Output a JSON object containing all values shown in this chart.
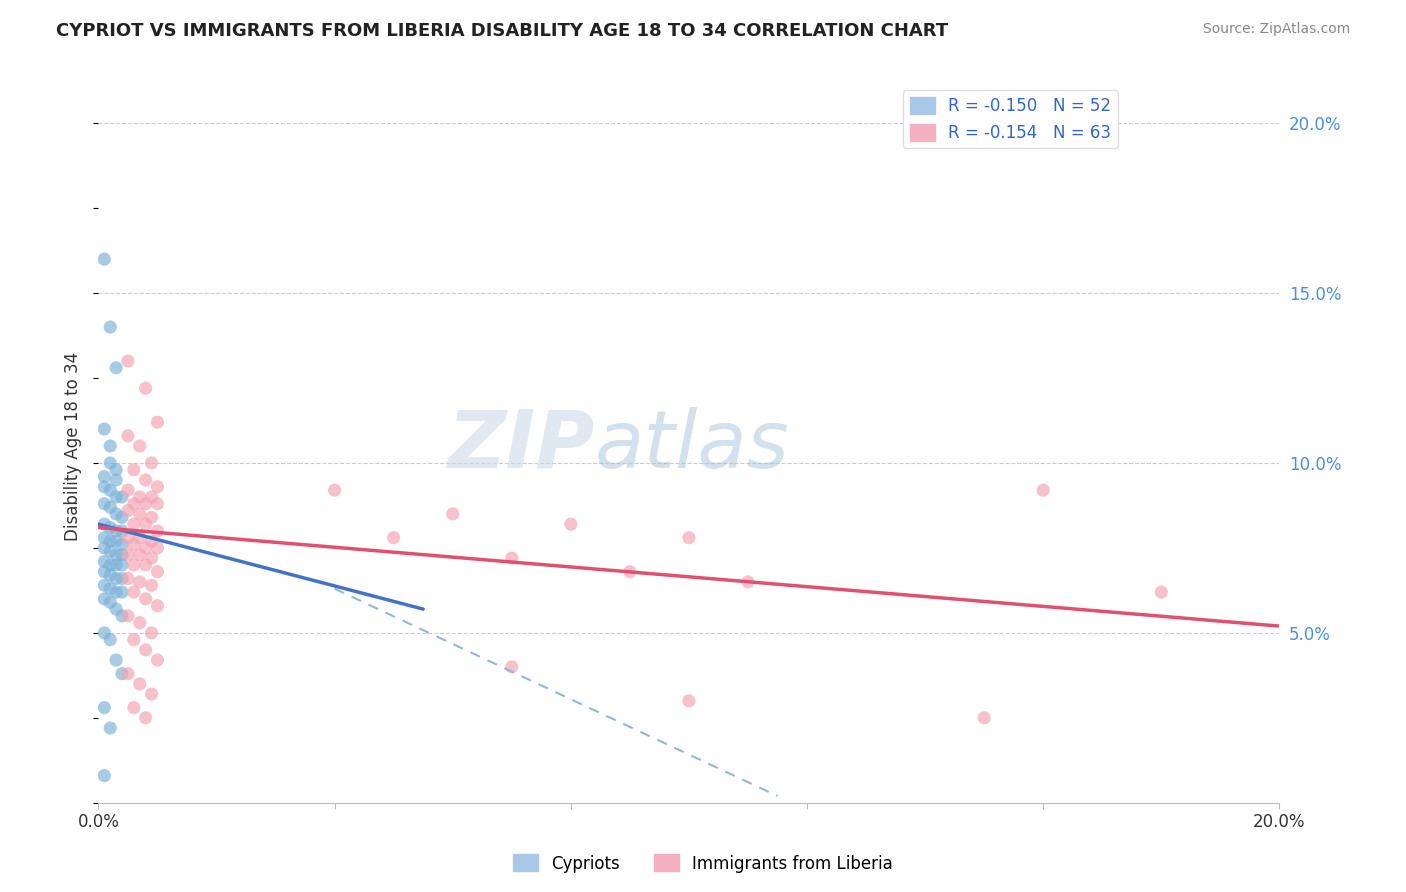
{
  "title": "CYPRIOT VS IMMIGRANTS FROM LIBERIA DISABILITY AGE 18 TO 34 CORRELATION CHART",
  "source_text": "Source: ZipAtlas.com",
  "ylabel": "Disability Age 18 to 34",
  "xlim": [
    0.0,
    0.2
  ],
  "ylim": [
    0.0,
    0.21
  ],
  "x_ticks": [
    0.0,
    0.04,
    0.08,
    0.12,
    0.16,
    0.2
  ],
  "x_tick_labels": [
    "0.0%",
    "",
    "",
    "",
    "",
    "20.0%"
  ],
  "y_ticks_right": [
    0.05,
    0.1,
    0.15,
    0.2
  ],
  "y_tick_labels_right": [
    "5.0%",
    "10.0%",
    "15.0%",
    "20.0%"
  ],
  "cypriot_color": "#7ab0d8",
  "liberia_color": "#f4a0b0",
  "cypriot_dots": [
    [
      0.001,
      0.16
    ],
    [
      0.002,
      0.14
    ],
    [
      0.003,
      0.128
    ],
    [
      0.001,
      0.11
    ],
    [
      0.002,
      0.105
    ],
    [
      0.002,
      0.1
    ],
    [
      0.003,
      0.098
    ],
    [
      0.001,
      0.096
    ],
    [
      0.003,
      0.095
    ],
    [
      0.001,
      0.093
    ],
    [
      0.002,
      0.092
    ],
    [
      0.003,
      0.09
    ],
    [
      0.004,
      0.09
    ],
    [
      0.001,
      0.088
    ],
    [
      0.002,
      0.087
    ],
    [
      0.003,
      0.085
    ],
    [
      0.004,
      0.084
    ],
    [
      0.001,
      0.082
    ],
    [
      0.002,
      0.081
    ],
    [
      0.003,
      0.08
    ],
    [
      0.004,
      0.08
    ],
    [
      0.001,
      0.078
    ],
    [
      0.002,
      0.077
    ],
    [
      0.003,
      0.077
    ],
    [
      0.004,
      0.076
    ],
    [
      0.001,
      0.075
    ],
    [
      0.002,
      0.074
    ],
    [
      0.003,
      0.073
    ],
    [
      0.004,
      0.073
    ],
    [
      0.001,
      0.071
    ],
    [
      0.002,
      0.07
    ],
    [
      0.003,
      0.07
    ],
    [
      0.004,
      0.07
    ],
    [
      0.001,
      0.068
    ],
    [
      0.002,
      0.067
    ],
    [
      0.003,
      0.066
    ],
    [
      0.004,
      0.066
    ],
    [
      0.001,
      0.064
    ],
    [
      0.002,
      0.063
    ],
    [
      0.003,
      0.062
    ],
    [
      0.004,
      0.062
    ],
    [
      0.001,
      0.06
    ],
    [
      0.002,
      0.059
    ],
    [
      0.003,
      0.057
    ],
    [
      0.004,
      0.055
    ],
    [
      0.001,
      0.05
    ],
    [
      0.002,
      0.048
    ],
    [
      0.003,
      0.042
    ],
    [
      0.004,
      0.038
    ],
    [
      0.001,
      0.028
    ],
    [
      0.002,
      0.022
    ],
    [
      0.001,
      0.008
    ]
  ],
  "liberia_dots": [
    [
      0.005,
      0.13
    ],
    [
      0.008,
      0.122
    ],
    [
      0.01,
      0.112
    ],
    [
      0.005,
      0.108
    ],
    [
      0.007,
      0.105
    ],
    [
      0.009,
      0.1
    ],
    [
      0.006,
      0.098
    ],
    [
      0.008,
      0.095
    ],
    [
      0.01,
      0.093
    ],
    [
      0.005,
      0.092
    ],
    [
      0.007,
      0.09
    ],
    [
      0.009,
      0.09
    ],
    [
      0.006,
      0.088
    ],
    [
      0.008,
      0.088
    ],
    [
      0.01,
      0.088
    ],
    [
      0.005,
      0.086
    ],
    [
      0.007,
      0.085
    ],
    [
      0.009,
      0.084
    ],
    [
      0.006,
      0.082
    ],
    [
      0.008,
      0.082
    ],
    [
      0.01,
      0.08
    ],
    [
      0.005,
      0.078
    ],
    [
      0.007,
      0.078
    ],
    [
      0.009,
      0.077
    ],
    [
      0.006,
      0.076
    ],
    [
      0.008,
      0.075
    ],
    [
      0.01,
      0.075
    ],
    [
      0.005,
      0.073
    ],
    [
      0.007,
      0.073
    ],
    [
      0.009,
      0.072
    ],
    [
      0.006,
      0.07
    ],
    [
      0.008,
      0.07
    ],
    [
      0.01,
      0.068
    ],
    [
      0.005,
      0.066
    ],
    [
      0.007,
      0.065
    ],
    [
      0.009,
      0.064
    ],
    [
      0.006,
      0.062
    ],
    [
      0.008,
      0.06
    ],
    [
      0.01,
      0.058
    ],
    [
      0.005,
      0.055
    ],
    [
      0.007,
      0.053
    ],
    [
      0.009,
      0.05
    ],
    [
      0.006,
      0.048
    ],
    [
      0.008,
      0.045
    ],
    [
      0.01,
      0.042
    ],
    [
      0.005,
      0.038
    ],
    [
      0.007,
      0.035
    ],
    [
      0.009,
      0.032
    ],
    [
      0.006,
      0.028
    ],
    [
      0.008,
      0.025
    ],
    [
      0.04,
      0.092
    ],
    [
      0.06,
      0.085
    ],
    [
      0.08,
      0.082
    ],
    [
      0.1,
      0.078
    ],
    [
      0.05,
      0.078
    ],
    [
      0.07,
      0.072
    ],
    [
      0.09,
      0.068
    ],
    [
      0.11,
      0.065
    ],
    [
      0.07,
      0.04
    ],
    [
      0.1,
      0.03
    ],
    [
      0.16,
      0.092
    ],
    [
      0.18,
      0.062
    ],
    [
      0.15,
      0.025
    ]
  ],
  "cypriot_line": {
    "x0": 0.0,
    "y0": 0.082,
    "x1": 0.055,
    "y1": 0.057
  },
  "liberia_line": {
    "x0": 0.0,
    "y0": 0.081,
    "x1": 0.2,
    "y1": 0.052
  },
  "cypriot_dash_line": {
    "x0": 0.04,
    "y0": 0.063,
    "x1": 0.115,
    "y1": 0.002
  },
  "background_color": "#ffffff",
  "grid_color": "#cccccc",
  "title_color": "#222222",
  "source_color": "#888888"
}
